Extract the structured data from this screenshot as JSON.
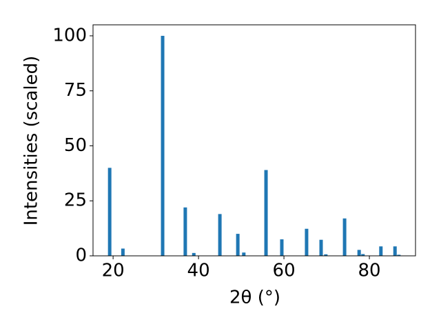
{
  "chart_data": {
    "type": "bar",
    "x_label": "2θ (°)",
    "y_label": "Intensities (scaled)",
    "x": [
      19.2,
      22.3,
      31.6,
      36.9,
      38.9,
      45.0,
      49.2,
      50.6,
      55.8,
      59.5,
      65.3,
      68.7,
      69.8,
      74.2,
      77.6,
      78.5,
      82.7,
      86.0,
      86.9
    ],
    "values": [
      40,
      3.3,
      100,
      22,
      1.3,
      19,
      10,
      1.5,
      39,
      7.5,
      12.3,
      7.3,
      0.7,
      17,
      2.7,
      0.8,
      4.3,
      4.3,
      0.5
    ],
    "color": "#1f77b4",
    "xlim": [
      15.3,
      90.8
    ],
    "ylim": [
      0,
      105
    ],
    "xticks": [
      20,
      40,
      60,
      80
    ],
    "yticks": [
      0,
      25,
      50,
      75,
      100
    ],
    "grid": false
  }
}
